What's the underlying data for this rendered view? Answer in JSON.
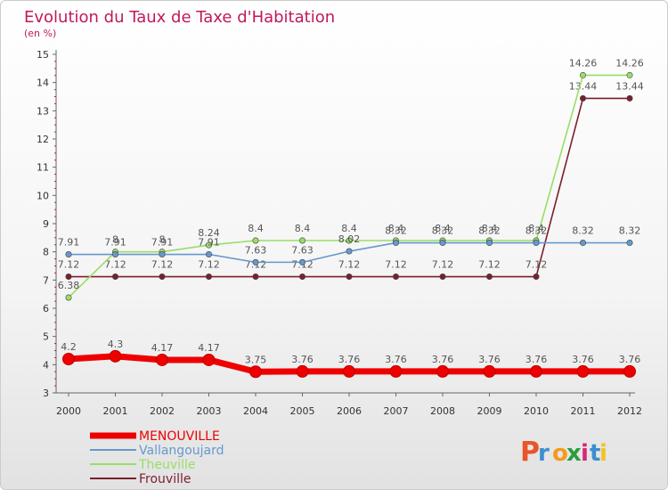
{
  "chart_data": {
    "type": "line",
    "title": "Evolution du Taux de Taxe d'Habitation",
    "ylabel": "(en %)",
    "xlabel": "",
    "ylim": [
      3,
      15
    ],
    "yticks": [
      "3",
      "4",
      "5",
      "6",
      "7",
      "8",
      "9",
      "10",
      "11",
      "12",
      "13",
      "14",
      "15"
    ],
    "categories": [
      "2000",
      "2001",
      "2002",
      "2003",
      "2004",
      "2005",
      "2006",
      "2007",
      "2008",
      "2009",
      "2010",
      "2011",
      "2012"
    ],
    "series": [
      {
        "name": "Frouville",
        "color": "#7b1f2e",
        "values": [
          7.12,
          7.12,
          7.12,
          7.12,
          7.12,
          7.12,
          7.12,
          7.12,
          7.12,
          7.12,
          7.12,
          13.44,
          13.44
        ],
        "labels": [
          "7.12",
          "7.12",
          "7.12",
          "7.12",
          "7.12",
          "7.12",
          "7.12",
          "7.12",
          "7.12",
          "7.12",
          "7.12",
          "13.44",
          "13.44"
        ]
      },
      {
        "name": "Theuville",
        "color": "#99dd66",
        "values": [
          6.38,
          8,
          8,
          8.24,
          8.4,
          8.4,
          8.4,
          8.4,
          8.4,
          8.4,
          8.4,
          14.26,
          14.26
        ],
        "labels": [
          "6.38",
          "8",
          "8",
          "8.24",
          "8.4",
          "8.4",
          "8.4",
          "8.4",
          "8.4",
          "8.4",
          "8.4",
          "14.26",
          "14.26"
        ]
      },
      {
        "name": "Vallangoujard",
        "color": "#6699cc",
        "values": [
          7.91,
          7.91,
          7.91,
          7.91,
          7.63,
          7.63,
          8.02,
          8.32,
          8.32,
          8.32,
          8.32,
          8.32,
          8.32
        ],
        "labels": [
          "7.91",
          "7.91",
          "7.91",
          "7.91",
          "7.63",
          "7.63",
          "8.02",
          "8.32",
          "8.32",
          "8.32",
          "8.32",
          "8.32",
          "8.32"
        ]
      },
      {
        "name": "MENOUVILLE",
        "color": "#ee0000",
        "values": [
          4.2,
          4.3,
          4.17,
          4.17,
          3.75,
          3.76,
          3.76,
          3.76,
          3.76,
          3.76,
          3.76,
          3.76,
          3.76
        ],
        "labels": [
          "4.2",
          "4.3",
          "4.17",
          "4.17",
          "3.75",
          "3.76",
          "3.76",
          "3.76",
          "3.76",
          "3.76",
          "3.76",
          "3.76",
          "3.76"
        ]
      }
    ],
    "legend": [
      "MENOUVILLE",
      "Vallangoujard",
      "Theuville",
      "Frouville"
    ]
  },
  "brand": {
    "letters": [
      "P",
      "r",
      "o",
      "x",
      "i",
      "t",
      "i"
    ],
    "colors": [
      "#e8552a",
      "#3b8fd1",
      "#f39a1e",
      "#2a9d3b",
      "#d8257a",
      "#3b8fd1",
      "#f3c21e"
    ]
  }
}
